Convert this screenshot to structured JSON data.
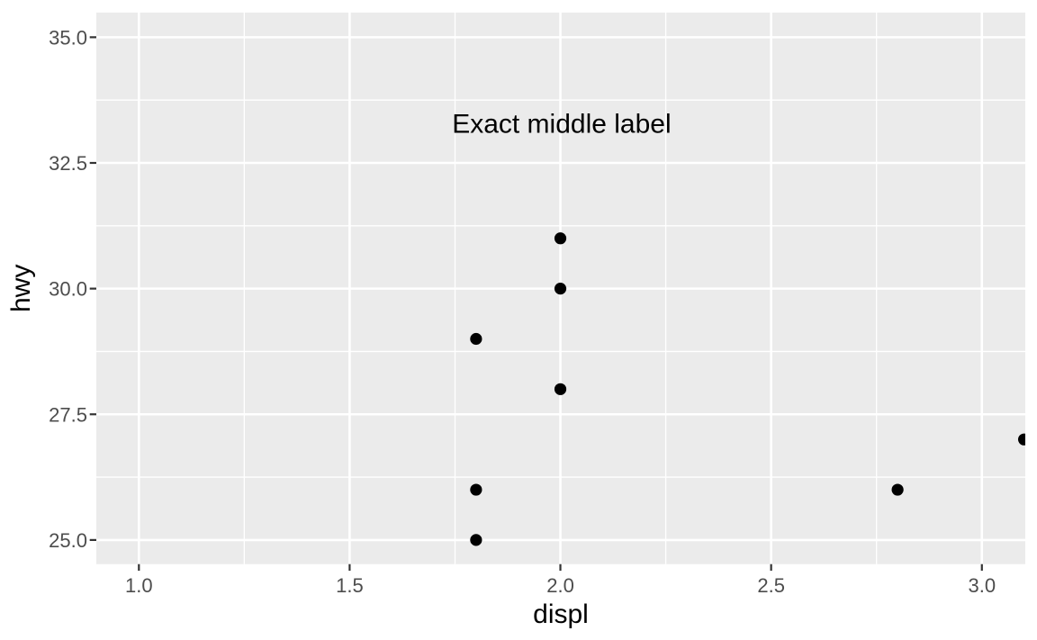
{
  "chart_data": {
    "type": "scatter",
    "title": "",
    "xlabel": "displ",
    "ylabel": "hwy",
    "points": [
      {
        "x": 1.8,
        "y": 29
      },
      {
        "x": 1.8,
        "y": 26
      },
      {
        "x": 1.8,
        "y": 25
      },
      {
        "x": 2.0,
        "y": 31
      },
      {
        "x": 2.0,
        "y": 30
      },
      {
        "x": 2.0,
        "y": 28
      },
      {
        "x": 2.8,
        "y": 26
      },
      {
        "x": 3.1,
        "y": 27
      }
    ],
    "annotation": {
      "text": "Exact middle label",
      "x": 2.003,
      "y": 33.29
    },
    "x_axis": {
      "label": "displ",
      "ticks": [
        1.0,
        1.5,
        2.0,
        2.5,
        3.0
      ],
      "tick_labels": [
        "1.0",
        "1.5",
        "2.0",
        "2.5",
        "3.0"
      ],
      "minor_gridlines": [
        1.25,
        1.75,
        2.25,
        2.75
      ],
      "range": [
        0.899,
        3.103
      ]
    },
    "y_axis": {
      "label": "hwy",
      "ticks": [
        25.0,
        27.5,
        30.0,
        32.5,
        35.0
      ],
      "tick_labels": [
        "25.0",
        "27.5",
        "30.0",
        "32.5",
        "35.0"
      ],
      "minor_gridlines": [
        26.25,
        28.75,
        31.25,
        33.75
      ],
      "range": [
        24.52,
        35.49
      ]
    },
    "grid": "major+minor",
    "legend": "none",
    "style": {
      "background": "#FFFFFF",
      "panel_bg": "#EBEBEB",
      "grid_color": "#FFFFFF",
      "point_color": "#000000",
      "annotation_color": "#000000",
      "axis_title_color": "#000000",
      "tick_label_color": "#4D4D4D",
      "tick_mark_color": "#333333"
    }
  }
}
